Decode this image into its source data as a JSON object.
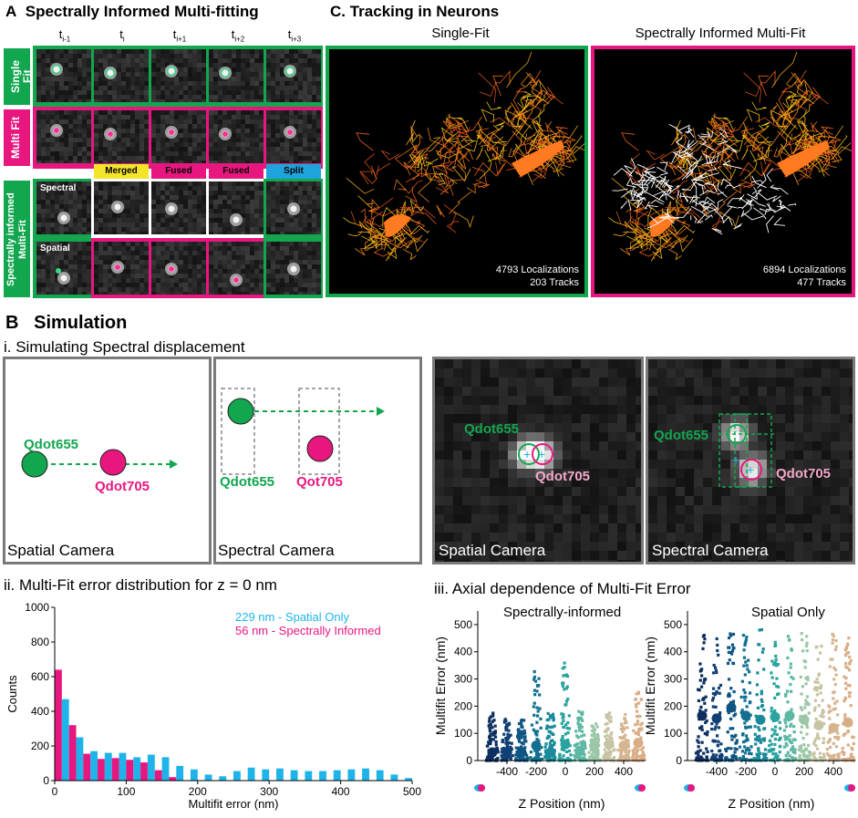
{
  "panel_a": {
    "letter": "A",
    "title": "Spectrally Informed Multi-fitting",
    "time_labels": [
      "t",
      "t",
      "t",
      "t",
      "t"
    ],
    "time_subs": [
      "i-1",
      "i",
      "i+1",
      "i+2",
      "i+3"
    ],
    "row_single": "Single Fit",
    "row_multi": "Multi Fit",
    "row_spectral": "Spectrally informed Multi-Fit",
    "spectral_label": "Spectral",
    "spatial_label": "Spatial",
    "badges": [
      "Merged",
      "Fused",
      "Fused",
      "Split"
    ],
    "badge_colors": [
      "#f5e52a",
      "#e8177f",
      "#e8177f",
      "#1ea3dd"
    ],
    "green": "#12a64f",
    "magenta": "#e8177f"
  },
  "panel_c": {
    "letter": "C.",
    "title": "Tracking in Neurons",
    "left_title": "Single-Fit",
    "right_title": "Spectrally Informed Multi-Fit",
    "left_stats": [
      "4793 Localizations",
      "203 Tracks"
    ],
    "right_stats": [
      "6894 Localizations",
      "477 Tracks"
    ]
  },
  "panel_b": {
    "letter": "B",
    "title": "Simulation",
    "sub_i": "i. Simulating Spectral displacement",
    "spatial_camera": "Spatial Camera",
    "spectral_camera": "Spectral Camera",
    "qdot655": "Qdot655",
    "qdot705": "Qdot705",
    "qot705": "Qot705",
    "sub_ii": "ii. Multi-Fit error distribution for z = 0 nm",
    "sub_iii": "iii. Axial dependence of Multi-Fit Error",
    "legend_spatial": "229 nm - Spatial Only",
    "legend_spectral": "56 nm   - Spectrally Informed",
    "strip_left_title": "Spectrally-informed",
    "strip_right_title": "Spatial Only"
  },
  "chart_data": [
    {
      "type": "bar",
      "xlabel": "Multifit error (nm)",
      "ylabel": "Counts",
      "xlim": [
        0,
        500
      ],
      "ylim": [
        0,
        1000
      ],
      "xticks": [
        0,
        100,
        200,
        300,
        400,
        500
      ],
      "yticks": [
        0,
        200,
        400,
        600,
        800,
        1000
      ],
      "bin_centers": [
        10,
        30,
        50,
        70,
        90,
        110,
        130,
        150,
        170,
        190,
        210,
        230,
        250,
        270,
        290,
        310,
        330,
        350,
        370,
        390,
        410,
        430,
        450,
        470,
        490
      ],
      "series": [
        {
          "name": "56 nm - Spectrally Informed",
          "color": "#e8177f",
          "values": [
            640,
            320,
            155,
            125,
            130,
            120,
            105,
            60,
            20,
            0,
            0,
            0,
            0,
            0,
            0,
            0,
            0,
            0,
            0,
            0,
            0,
            0,
            0,
            0,
            0
          ]
        },
        {
          "name": "229 nm - Spatial Only",
          "color": "#1eb4ea",
          "values": [
            470,
            250,
            170,
            160,
            160,
            135,
            150,
            135,
            85,
            65,
            35,
            25,
            55,
            75,
            65,
            70,
            60,
            55,
            55,
            60,
            65,
            70,
            60,
            35,
            15
          ]
        }
      ]
    },
    {
      "type": "scatter",
      "title": "Spectrally-informed",
      "xlabel": "Z Position (nm)",
      "ylabel": "Multifit Error (nm)",
      "xlim": [
        -600,
        550
      ],
      "ylim": [
        0,
        550
      ],
      "xticks": [
        -400,
        -200,
        0,
        200,
        400
      ],
      "yticks": [
        0,
        100,
        200,
        300,
        400,
        500
      ],
      "z_positions": [
        -500,
        -400,
        -300,
        -200,
        -100,
        0,
        100,
        200,
        300,
        400,
        500
      ],
      "max_values": [
        175,
        160,
        160,
        355,
        190,
        360,
        185,
        140,
        180,
        170,
        270
      ],
      "median_values": [
        30,
        30,
        30,
        55,
        30,
        60,
        35,
        55,
        60,
        55,
        65
      ]
    },
    {
      "type": "scatter",
      "title": "Spatial Only",
      "xlabel": "Z Position (nm)",
      "ylabel": "Multifit Error (nm)",
      "xlim": [
        -600,
        550
      ],
      "ylim": [
        0,
        550
      ],
      "xticks": [
        -400,
        -200,
        0,
        200,
        400
      ],
      "yticks": [
        0,
        100,
        200,
        300,
        400,
        500
      ],
      "z_positions": [
        -500,
        -400,
        -300,
        -200,
        -100,
        0,
        100,
        200,
        300,
        400,
        500
      ],
      "max_values": [
        490,
        460,
        485,
        470,
        490,
        480,
        460,
        470,
        460,
        470,
        460
      ],
      "median_values": [
        165,
        155,
        195,
        165,
        150,
        160,
        165,
        150,
        130,
        120,
        140
      ]
    }
  ],
  "z_colors": [
    "#0c2e5e",
    "#0f3f73",
    "#0f5583",
    "#137090",
    "#1a8a9a",
    "#2aa39e",
    "#5cb7a3",
    "#9bc7a6",
    "#c7c4a3",
    "#d4b590",
    "#d9ad86"
  ]
}
